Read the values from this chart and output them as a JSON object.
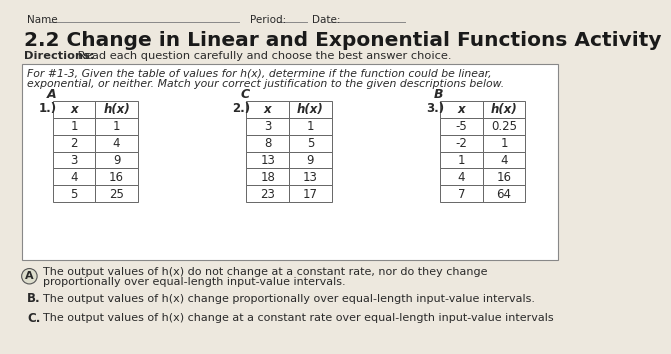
{
  "title": "2.2 Change in Linear and Exponential Functions Activity",
  "name_label": "Name",
  "period_label": "Period:",
  "date_label": "Date:",
  "directions_bold": "Directions:",
  "directions_rest": " Read each question carefully and choose the best answer choice.",
  "instructions_line1": "For #1-3, Given the table of values for h(x), determine if the function could be linear,",
  "instructions_line2": "exponential, or neither. Match your correct justification to the given descriptions below.",
  "table1": {
    "label": "1.)",
    "answer": "A",
    "x": [
      "1",
      "2",
      "3",
      "4",
      "5"
    ],
    "hx": [
      "1",
      "4",
      "9",
      "16",
      "25"
    ]
  },
  "table2": {
    "label": "2.)",
    "answer": "C",
    "x": [
      "3",
      "8",
      "13",
      "18",
      "23"
    ],
    "hx": [
      "1",
      "5",
      "9",
      "13",
      "17"
    ]
  },
  "table3": {
    "label": "3.)",
    "answer": "B",
    "x": [
      "-5",
      "-2",
      "1",
      "4",
      "7"
    ],
    "hx": [
      "0.25",
      "1",
      "4",
      "16",
      "64"
    ]
  },
  "choices": [
    {
      "letter": "A",
      "line1": "The output values of h(x) do not change at a constant rate, nor do they change",
      "line2": "proportionally over equal-length input-value intervals."
    },
    {
      "letter": "B.",
      "line1": "The output values of h(x) change proportionally over equal-length input-value intervals.",
      "line2": ""
    },
    {
      "letter": "C.",
      "line1": "The output values of h(x) change at a constant rate over equal-length input-value intervals",
      "line2": ""
    }
  ],
  "bg_color": "#ede8de",
  "box_bg": "#ffffff",
  "text_color": "#2a2a2a",
  "table_border": "#666666",
  "title_color": "#1a1a1a"
}
